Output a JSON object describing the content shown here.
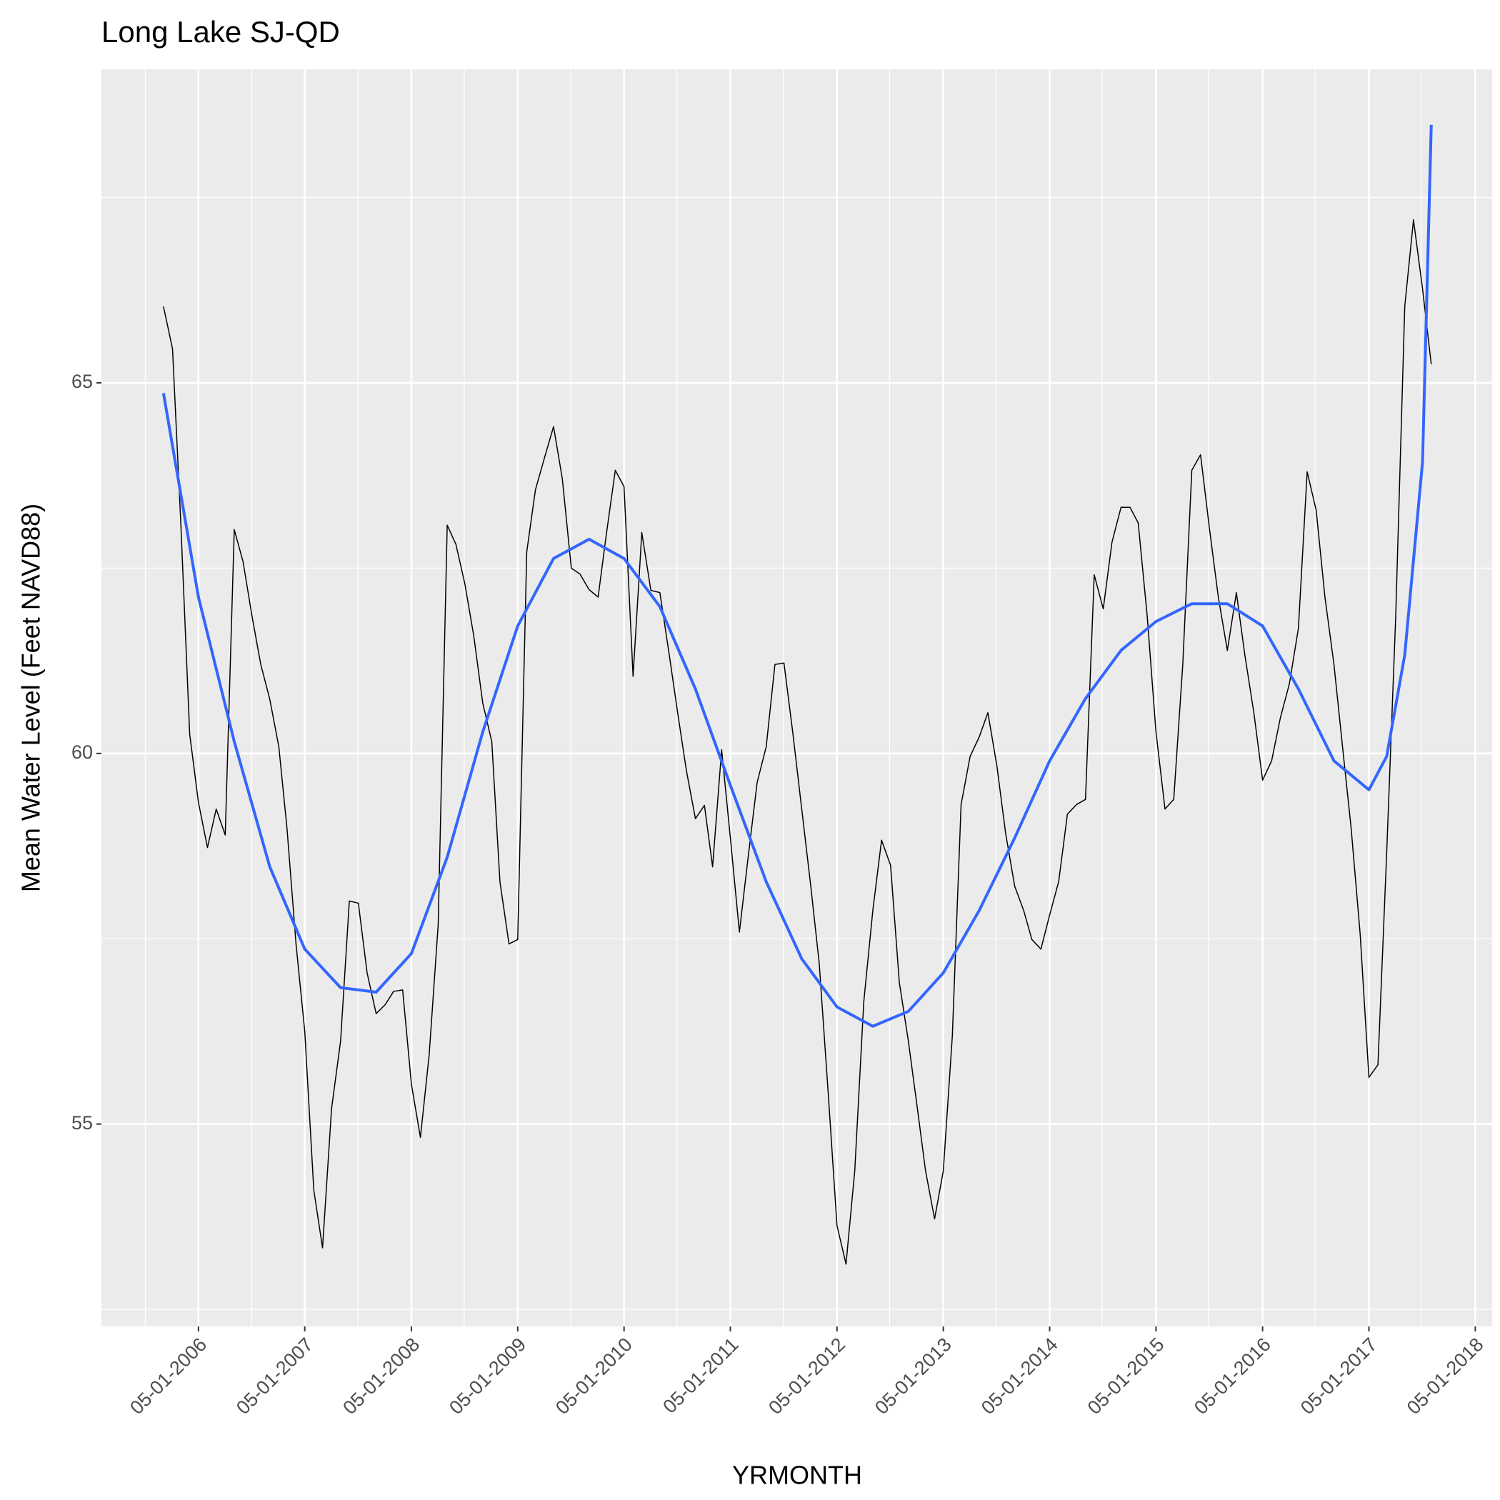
{
  "chart_data": {
    "type": "line",
    "title": "Long Lake SJ-QD",
    "x_label": "YRMONTH",
    "y_label": "Mean Water Level (Feet NAVD88)",
    "xlim": [
      "2005-06-02",
      "2018-06-28"
    ],
    "xticks": [
      {
        "value": "2006-05-01",
        "label": "05-01-2006"
      },
      {
        "value": "2007-05-01",
        "label": "05-01-2007"
      },
      {
        "value": "2008-05-01",
        "label": "05-01-2008"
      },
      {
        "value": "2009-05-01",
        "label": "05-01-2009"
      },
      {
        "value": "2010-05-01",
        "label": "05-01-2010"
      },
      {
        "value": "2011-05-01",
        "label": "05-01-2011"
      },
      {
        "value": "2012-05-01",
        "label": "05-01-2012"
      },
      {
        "value": "2013-05-01",
        "label": "05-01-2013"
      },
      {
        "value": "2014-05-01",
        "label": "05-01-2014"
      },
      {
        "value": "2015-05-01",
        "label": "05-01-2015"
      },
      {
        "value": "2016-05-01",
        "label": "05-01-2016"
      },
      {
        "value": "2017-05-01",
        "label": "05-01-2017"
      },
      {
        "value": "2018-05-01",
        "label": "05-01-2018"
      }
    ],
    "ylim": [
      52.27,
      69.23
    ],
    "yticks": [
      55,
      60,
      65
    ],
    "grid": true,
    "series": [
      {
        "color": "#000000",
        "width": 1.5,
        "x": [
          "2006-01-01",
          "2006-02-01",
          "2006-03-01",
          "2006-04-01",
          "2006-05-01",
          "2006-06-01",
          "2006-07-01",
          "2006-08-01",
          "2006-09-01",
          "2006-10-01",
          "2006-11-01",
          "2006-12-01",
          "2007-01-01",
          "2007-02-01",
          "2007-03-01",
          "2007-04-01",
          "2007-05-01",
          "2007-06-01",
          "2007-07-01",
          "2007-08-01",
          "2007-09-01",
          "2007-10-01",
          "2007-11-01",
          "2007-12-01",
          "2008-01-01",
          "2008-02-01",
          "2008-03-01",
          "2008-04-01",
          "2008-05-01",
          "2008-06-01",
          "2008-07-01",
          "2008-08-01",
          "2008-09-01",
          "2008-10-01",
          "2008-11-01",
          "2008-12-01",
          "2009-01-01",
          "2009-02-01",
          "2009-03-01",
          "2009-04-01",
          "2009-05-01",
          "2009-06-01",
          "2009-07-01",
          "2009-08-01",
          "2009-09-01",
          "2009-10-01",
          "2009-11-01",
          "2009-12-01",
          "2010-01-01",
          "2010-02-01",
          "2010-03-01",
          "2010-04-01",
          "2010-05-01",
          "2010-06-01",
          "2010-07-01",
          "2010-08-01",
          "2010-09-01",
          "2010-10-01",
          "2010-11-01",
          "2010-12-01",
          "2011-01-01",
          "2011-02-01",
          "2011-03-01",
          "2011-04-01",
          "2011-05-01",
          "2011-06-01",
          "2011-07-01",
          "2011-08-01",
          "2011-09-01",
          "2011-10-01",
          "2011-11-01",
          "2011-12-01",
          "2012-01-01",
          "2012-02-01",
          "2012-03-01",
          "2012-04-01",
          "2012-05-01",
          "2012-06-01",
          "2012-07-01",
          "2012-08-01",
          "2012-09-01",
          "2012-10-01",
          "2012-11-01",
          "2012-12-01",
          "2013-01-01",
          "2013-02-01",
          "2013-03-01",
          "2013-04-01",
          "2013-05-01",
          "2013-06-01",
          "2013-07-01",
          "2013-08-01",
          "2013-09-01",
          "2013-10-01",
          "2013-11-01",
          "2013-12-01",
          "2014-01-01",
          "2014-02-01",
          "2014-03-01",
          "2014-04-01",
          "2014-05-01",
          "2014-06-01",
          "2014-07-01",
          "2014-08-01",
          "2014-09-01",
          "2014-10-01",
          "2014-11-01",
          "2014-12-01",
          "2015-01-01",
          "2015-02-01",
          "2015-03-01",
          "2015-04-01",
          "2015-05-01",
          "2015-06-01",
          "2015-07-01",
          "2015-08-01",
          "2015-09-01",
          "2015-10-01",
          "2015-11-01",
          "2015-12-01",
          "2016-01-01",
          "2016-02-01",
          "2016-03-01",
          "2016-04-01",
          "2016-05-01",
          "2016-06-01",
          "2016-07-01",
          "2016-08-01",
          "2016-09-01",
          "2016-10-01",
          "2016-11-01",
          "2016-12-01",
          "2017-01-01",
          "2017-02-01",
          "2017-03-01",
          "2017-04-01",
          "2017-05-01",
          "2017-06-01",
          "2017-07-01",
          "2017-08-01",
          "2017-09-01",
          "2017-10-01",
          "2017-11-01",
          "2017-12-01"
        ],
        "values": [
          66.03,
          65.46,
          63.15,
          60.26,
          59.34,
          58.73,
          59.25,
          58.9,
          63.02,
          62.59,
          61.85,
          61.2,
          60.73,
          60.09,
          58.99,
          57.43,
          56.25,
          54.11,
          53.33,
          55.21,
          56.12,
          58.01,
          57.98,
          57.04,
          56.49,
          56.61,
          56.79,
          56.81,
          55.54,
          54.82,
          55.93,
          57.69,
          63.08,
          62.82,
          62.28,
          61.59,
          60.68,
          60.16,
          58.27,
          57.43,
          57.49,
          62.72,
          63.56,
          63.99,
          64.41,
          63.71,
          62.5,
          62.42,
          62.21,
          62.11,
          62.95,
          63.82,
          63.6,
          61.04,
          62.98,
          62.2,
          62.17,
          61.39,
          60.55,
          59.77,
          59.12,
          59.3,
          58.47,
          60.05,
          58.86,
          57.59,
          58.6,
          59.61,
          60.09,
          61.2,
          61.22,
          60.29,
          59.25,
          58.21,
          57.17,
          55.41,
          53.63,
          53.11,
          54.37,
          56.65,
          57.88,
          58.83,
          58.49,
          56.91,
          56.12,
          55.21,
          54.37,
          53.72,
          54.37,
          56.19,
          59.31,
          59.96,
          60.22,
          60.55,
          59.83,
          58.92,
          58.21,
          57.88,
          57.49,
          57.36,
          57.82,
          58.27,
          59.18,
          59.31,
          59.38,
          62.41,
          61.95,
          62.85,
          63.32,
          63.32,
          63.11,
          61.85,
          60.29,
          59.25,
          59.38,
          61.2,
          63.82,
          64.03,
          63.02,
          62.11,
          61.39,
          62.17,
          61.33,
          60.55,
          59.64,
          59.9,
          60.48,
          60.94,
          61.69,
          63.8,
          63.28,
          62.11,
          61.2,
          60.03,
          58.99,
          57.56,
          55.63,
          55.8,
          58.66,
          61.85,
          66.03,
          67.2,
          66.27,
          65.25
        ]
      },
      {
        "color": "#3366ff",
        "width": 4,
        "x": [
          "2006-01-01",
          "2006-05-01",
          "2006-09-01",
          "2007-01-01",
          "2007-05-01",
          "2007-09-01",
          "2008-01-01",
          "2008-05-01",
          "2008-09-01",
          "2009-01-01",
          "2009-05-01",
          "2009-09-01",
          "2010-01-01",
          "2010-05-01",
          "2010-09-01",
          "2011-01-01",
          "2011-05-01",
          "2011-09-01",
          "2012-01-01",
          "2012-05-01",
          "2012-09-01",
          "2013-01-01",
          "2013-05-01",
          "2013-09-01",
          "2014-01-01",
          "2014-05-01",
          "2014-09-01",
          "2015-01-01",
          "2015-05-01",
          "2015-09-01",
          "2016-01-01",
          "2016-05-01",
          "2016-09-01",
          "2017-01-01",
          "2017-05-01",
          "2017-07-01",
          "2017-09-01",
          "2017-11-01",
          "2017-12-01"
        ],
        "values": [
          64.86,
          62.11,
          60.16,
          58.47,
          57.36,
          56.84,
          56.78,
          57.3,
          58.6,
          60.29,
          61.72,
          62.63,
          62.89,
          62.63,
          61.98,
          60.87,
          59.57,
          58.27,
          57.23,
          56.58,
          56.32,
          56.52,
          57.04,
          57.88,
          58.86,
          59.9,
          60.74,
          61.39,
          61.78,
          62.02,
          62.02,
          61.72,
          60.87,
          59.9,
          59.51,
          59.96,
          61.33,
          63.93,
          68.48
        ]
      }
    ]
  }
}
